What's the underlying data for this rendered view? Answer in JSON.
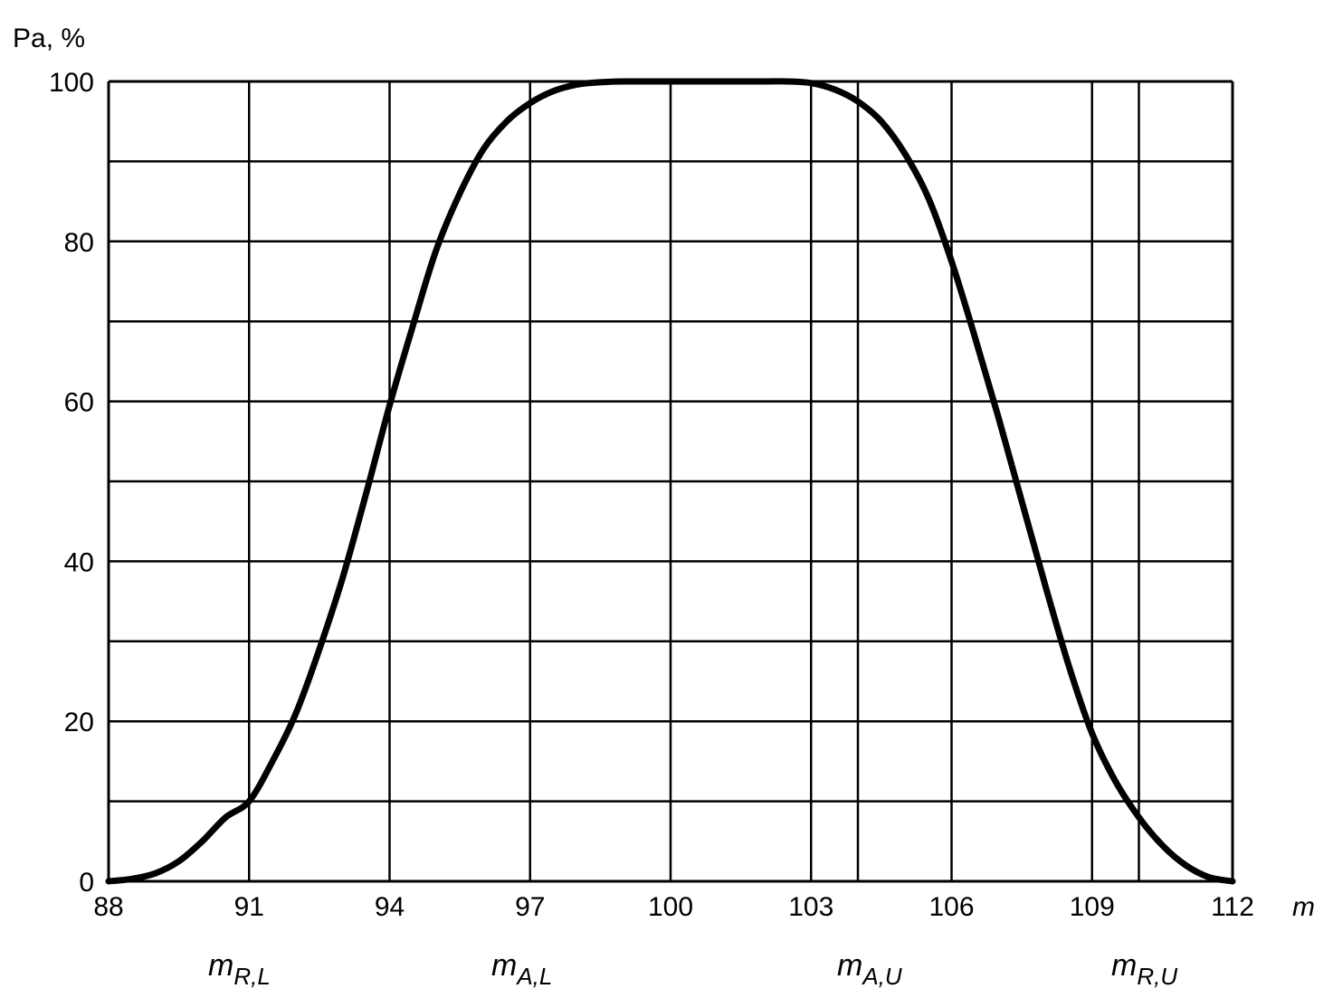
{
  "chart_data": {
    "type": "line",
    "title": "",
    "xlabel": "m",
    "ylabel": "Pa, %",
    "xlim": [
      88,
      112
    ],
    "ylim": [
      0,
      100
    ],
    "x_ticks": [
      88,
      91,
      94,
      97,
      100,
      103,
      106,
      109,
      112
    ],
    "x_tick_labels": [
      "88",
      "91",
      "94",
      "97",
      "100",
      "103",
      "106",
      "109",
      "112"
    ],
    "y_ticks": [
      0,
      20,
      40,
      60,
      80,
      100
    ],
    "y_tick_labels": [
      "0",
      "20",
      "40",
      "60",
      "80",
      "100"
    ],
    "grid": true,
    "x_gridlines": [
      88,
      91,
      94,
      97,
      100,
      103,
      104,
      106,
      109,
      110,
      112
    ],
    "y_gridlines": [
      0,
      10,
      20,
      30,
      40,
      50,
      60,
      70,
      80,
      90,
      100
    ],
    "series": [
      {
        "x": [
          88,
          88.5,
          89,
          89.5,
          90,
          90.5,
          91,
          91.5,
          92,
          92.5,
          93,
          93.5,
          94,
          94.5,
          95,
          95.5,
          96,
          96.5,
          97,
          97.5,
          98,
          98.5,
          99,
          99.5,
          100,
          101,
          102,
          102.5,
          103,
          103.5,
          104,
          104.5,
          105,
          105.5,
          106,
          106.5,
          107,
          107.5,
          108,
          108.5,
          109,
          109.5,
          110,
          110.5,
          111,
          111.5,
          112
        ],
        "y": [
          0,
          0.3,
          1.0,
          2.5,
          5.0,
          8.0,
          10.0,
          15.0,
          21.0,
          29.0,
          38.0,
          48.5,
          59.5,
          69.5,
          79.0,
          86.0,
          91.5,
          95.0,
          97.3,
          98.8,
          99.6,
          99.9,
          100,
          100,
          100,
          100,
          100,
          100,
          99.8,
          99.0,
          97.5,
          95.0,
          91.0,
          85.5,
          77.5,
          68.0,
          58.0,
          47.5,
          37.0,
          27.0,
          18.5,
          12.5,
          8.0,
          4.5,
          2.0,
          0.5,
          0
        ]
      }
    ],
    "markers": [
      {
        "base": "m",
        "sub": "R,L"
      },
      {
        "base": "m",
        "sub": "A,L"
      },
      {
        "base": "m",
        "sub": "A,U"
      },
      {
        "base": "m",
        "sub": "R,U"
      }
    ],
    "colors": {
      "line": "#000000",
      "grid": "#000000",
      "background": "#ffffff"
    }
  }
}
